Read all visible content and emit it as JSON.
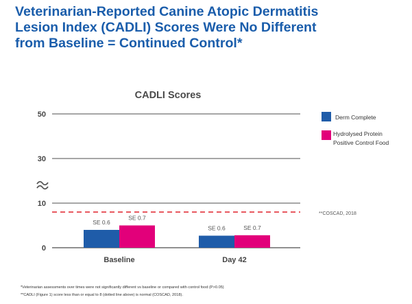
{
  "headline": [
    "Veterinarian-Reported Canine Atopic Dermatitis",
    "Lesion Index (CADLI) Scores Were No Different",
    "from Baseline = Continued Control*"
  ],
  "footnotes": [
    "*Veterinarian assessments over times were not significantly different vs baseline or compared with control food (P>0.05)",
    "**CADLI (Figure 1) score less than or equal to 8 (dotted line above) is normal (COSCAD, 2018)."
  ],
  "colors": {
    "headline": "#1a5dab",
    "derm_complete": "#1f5ca9",
    "control_food": "#e2007a",
    "threshold": "#e0202a",
    "grid": "#4d4d4d",
    "axis_text": "#444444"
  },
  "chart_data": {
    "type": "bar",
    "title": "CADLI Scores",
    "categories": [
      "Baseline",
      "Day 42"
    ],
    "series": [
      {
        "name": "Derm Complete",
        "values": [
          4.0,
          2.7
        ],
        "labels": [
          "SE 0.6",
          "SE 0.6"
        ]
      },
      {
        "name": "Hydrolysed Protein Positive Control Food",
        "values": [
          5.0,
          2.8
        ],
        "labels": [
          "SE 0.7",
          "SE 0.7"
        ]
      }
    ],
    "yticks": [
      "0",
      "10",
      "30",
      "50"
    ],
    "axis_break": "between 10 and 30",
    "reference_line": {
      "value": 8,
      "style": "dashed",
      "label": "**COSCAD, 2018"
    },
    "legend_position": "right"
  }
}
